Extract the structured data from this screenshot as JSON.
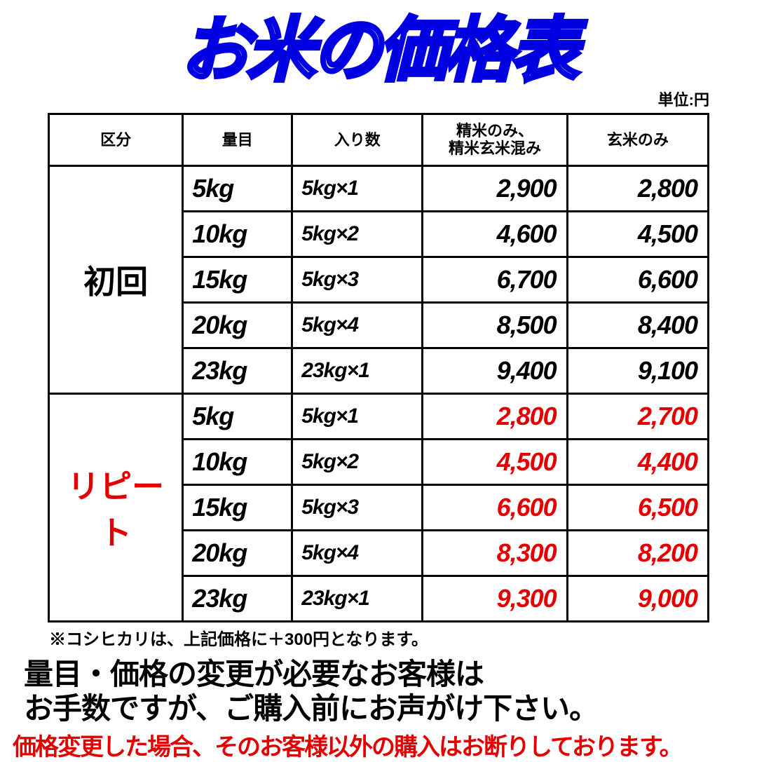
{
  "title": "お米の価格表",
  "unit_label": "単位:円",
  "columns": {
    "category": "区分",
    "weight": "量目",
    "count": "入り数",
    "price1": "精米のみ、\n精米玄米混み",
    "price2": "玄米のみ"
  },
  "groups": [
    {
      "label": "初回",
      "label_color": "#000000",
      "price_color": "#000000",
      "rows": [
        {
          "weight": "5kg",
          "count": "5kg×1",
          "p1": "2,900",
          "p2": "2,800"
        },
        {
          "weight": "10kg",
          "count": "5kg×2",
          "p1": "4,600",
          "p2": "4,500"
        },
        {
          "weight": "15kg",
          "count": "5kg×3",
          "p1": "6,700",
          "p2": "6,600"
        },
        {
          "weight": "20kg",
          "count": "5kg×4",
          "p1": "8,500",
          "p2": "8,400"
        },
        {
          "weight": "23kg",
          "count": "23kg×1",
          "p1": "9,400",
          "p2": "9,100"
        }
      ]
    },
    {
      "label": "リピート",
      "label_color": "#e40000",
      "price_color": "#e40000",
      "rows": [
        {
          "weight": "5kg",
          "count": "5kg×1",
          "p1": "2,800",
          "p2": "2,700"
        },
        {
          "weight": "10kg",
          "count": "5kg×2",
          "p1": "4,500",
          "p2": "4,400"
        },
        {
          "weight": "15kg",
          "count": "5kg×3",
          "p1": "6,600",
          "p2": "6,500"
        },
        {
          "weight": "20kg",
          "count": "5kg×4",
          "p1": "8,300",
          "p2": "8,200"
        },
        {
          "weight": "23kg",
          "count": "23kg×1",
          "p1": "9,300",
          "p2": "9,000"
        }
      ]
    }
  ],
  "footnote": "※コシヒカリは、上記価格に＋300円となります。",
  "message_black": "量目・価格の変更が必要なお客様は\nお手数ですが、ご購入前にお声がけ下さい。",
  "message_red": "価格変更した場合、そのお客様以外の購入はお断りしております。",
  "message_red_color": "#e40000"
}
